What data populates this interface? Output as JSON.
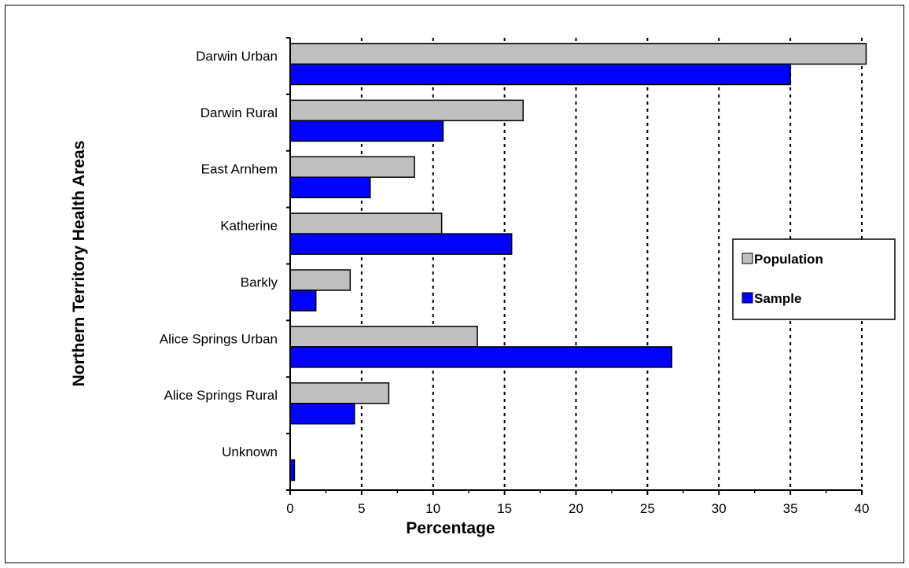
{
  "chart_data": {
    "type": "bar",
    "orientation": "horizontal",
    "title": "",
    "xlabel": "Percentage",
    "ylabel": "Northern Territory Health Areas",
    "xlim": [
      0,
      40
    ],
    "x_ticks": [
      "0",
      "5",
      "10",
      "15",
      "20",
      "25",
      "30",
      "35",
      "40"
    ],
    "grid": "vertical dotted",
    "legend_position": "right",
    "categories": [
      "Darwin Urban",
      "Darwin Rural",
      "East Arnhem",
      "Katherine",
      "Barkly",
      "Alice Springs Urban",
      "Alice Springs Rural",
      "Unknown"
    ],
    "series": [
      {
        "name": "Population",
        "color": "#c0c0c0",
        "values": [
          40.3,
          16.3,
          8.7,
          10.6,
          4.2,
          13.1,
          6.9,
          0
        ]
      },
      {
        "name": "Sample",
        "color": "#0000ff",
        "values": [
          35.0,
          10.7,
          5.6,
          15.5,
          1.8,
          26.7,
          4.5,
          0.3
        ]
      }
    ]
  }
}
